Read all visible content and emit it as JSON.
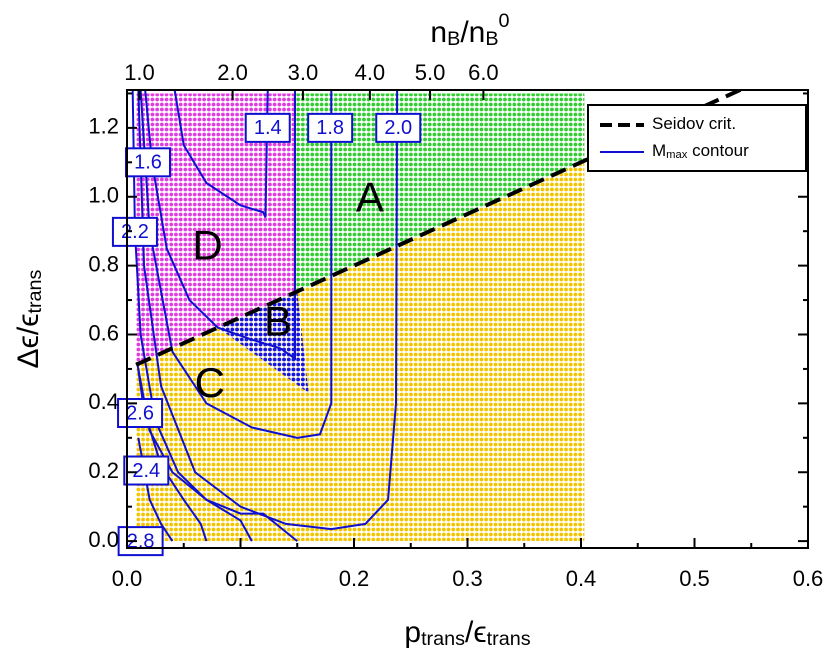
{
  "chart_data": {
    "type": "phase",
    "xlabel": [
      {
        "text": "p"
      },
      {
        "text": "trans",
        "sub": true
      },
      {
        "text": "/ϵ"
      },
      {
        "text": "trans",
        "sub": true
      }
    ],
    "ylabel": [
      {
        "text": "Δϵ/ϵ"
      },
      {
        "text": "trans",
        "sub": true
      }
    ],
    "x2label": [
      {
        "text": "n"
      },
      {
        "text": "B",
        "sub": true
      },
      {
        "text": "/n"
      },
      {
        "text": "B",
        "sub": true
      },
      {
        "text": "0",
        "sup": true
      }
    ],
    "xlim": [
      0,
      0.6
    ],
    "ylim": [
      -0.02,
      1.31
    ],
    "xticks": [
      {
        "value": 0,
        "label": "0.0"
      },
      0.1,
      0.2,
      0.3,
      0.4,
      0.5,
      0.6
    ],
    "xminor": [
      0.05,
      0.15,
      0.25,
      0.35,
      0.45,
      0.55
    ],
    "yticks": [
      {
        "value": 0,
        "label": "0.0"
      },
      0.2,
      0.4,
      0.6,
      0.8,
      {
        "value": 1,
        "label": "1.0"
      },
      1.2
    ],
    "yminor": [
      0.1,
      0.3,
      0.5,
      0.7,
      0.9,
      1.1,
      1.3
    ],
    "x2ticks": [
      {
        "value": 1,
        "label": "1.0",
        "at": 0.011
      },
      {
        "value": 2,
        "label": "2.0",
        "at": 0.093
      },
      {
        "value": 3,
        "label": "3.0",
        "at": 0.155
      },
      {
        "value": 4,
        "label": "4.0",
        "at": 0.214
      },
      {
        "value": 5,
        "label": "5.0",
        "at": 0.267
      },
      {
        "value": 6,
        "label": "6.0",
        "at": 0.314
      }
    ],
    "regions": [
      {
        "name": "C",
        "color": "#f2c400",
        "x": [
          0.008,
          0.403,
          0.403,
          0.008
        ],
        "y": [
          0,
          0,
          1.1045,
          0.512
        ],
        "label_x": 0.073,
        "label_y": 0.45
      },
      {
        "name": "A",
        "color": "#33cc33",
        "x": [
          0.148,
          0.403,
          0.403,
          0.148
        ],
        "y": [
          0.722,
          1.1045,
          1.3,
          1.3
        ],
        "label_x": 0.214,
        "label_y": 0.99
      },
      {
        "name": "D",
        "color": "#e03ce0",
        "x": [
          0.008,
          0.148,
          0.148,
          0.008
        ],
        "y": [
          0.512,
          0.722,
          1.3,
          1.3
        ],
        "label_x": 0.071,
        "label_y": 0.85
      },
      {
        "name": "B",
        "color": "#1414e6",
        "x": [
          0.08,
          0.15,
          0.16
        ],
        "y": [
          0.62,
          0.725,
          0.43
        ],
        "label_x": 0.133,
        "label_y": 0.63
      }
    ],
    "seidov": {
      "color": "#000000",
      "x": [
        0.008,
        0.6
      ],
      "y": [
        0.512,
        1.4
      ]
    },
    "contour_color": "#1010d0",
    "contours": [
      {
        "label": "1.4",
        "label_x": 0.124,
        "label_y": 1.2,
        "x": [
          0.042,
          0.05,
          0.07,
          0.1,
          0.12,
          0.122,
          0.124
        ],
        "y": [
          1.31,
          1.15,
          1.04,
          0.975,
          0.955,
          0.94,
          1.31
        ]
      },
      {
        "label": "1.6",
        "label_x": 0.0185,
        "label_y": 1.1,
        "x": [
          0.016,
          0.022,
          0.035,
          0.055,
          0.08,
          0.11,
          0.135,
          0.148,
          0.148
        ],
        "y": [
          1.31,
          1.1,
          0.85,
          0.7,
          0.62,
          0.585,
          0.56,
          0.53,
          1.31
        ]
      },
      {
        "label": "1.8",
        "label_x": 0.179,
        "label_y": 1.2,
        "x": [
          0.012,
          0.02,
          0.04,
          0.07,
          0.11,
          0.15,
          0.17,
          0.18,
          0.18
        ],
        "y": [
          1.31,
          0.9,
          0.55,
          0.4,
          0.33,
          0.3,
          0.31,
          0.4,
          1.31
        ]
      },
      {
        "label": "2.0",
        "label_x": 0.239,
        "label_y": 1.2,
        "x": [
          0.01,
          0.015,
          0.03,
          0.06,
          0.1,
          0.14,
          0.18,
          0.21,
          0.23,
          0.237,
          0.238
        ],
        "y": [
          1.31,
          0.8,
          0.45,
          0.2,
          0.1,
          0.05,
          0.035,
          0.05,
          0.12,
          0.4,
          1.31
        ]
      },
      {
        "label": "2.2",
        "label_x": 0.007,
        "label_y": 0.898,
        "x": [
          0.005,
          0.007,
          0.012,
          0.025,
          0.045,
          0.07,
          0.1,
          0.12,
          0.15
        ],
        "y": [
          1.31,
          0.9,
          0.6,
          0.35,
          0.2,
          0.12,
          0.08,
          0.08,
          0
        ]
      },
      {
        "label": "2.6",
        "label_x": 0.0115,
        "label_y": 0.372,
        "x": [
          0.009,
          0.015,
          0.03,
          0.05,
          0.065,
          0.07
        ],
        "y": [
          0.52,
          0.38,
          0.22,
          0.12,
          0.05,
          0
        ]
      },
      {
        "label": "2.4",
        "label_x": 0.017,
        "label_y": 0.205,
        "x": [
          0.01,
          0.02,
          0.04,
          0.07,
          0.1,
          0.11
        ],
        "y": [
          0.5,
          0.32,
          0.2,
          0.12,
          0.06,
          0
        ]
      },
      {
        "label": "2.8",
        "label_x": 0.012,
        "label_y": 0,
        "x": [
          0.01,
          0.02,
          0.03,
          0.04
        ],
        "y": [
          0.3,
          0.12,
          0.05,
          0
        ]
      }
    ],
    "legend": [
      {
        "parts": [
          {
            "text": "Seidov crit."
          }
        ],
        "style": "dashed"
      },
      {
        "parts": [
          {
            "text": "M"
          },
          {
            "text": "max",
            "sub": true
          },
          {
            "text": " contour"
          }
        ],
        "style": "contour"
      }
    ],
    "legend_position": "upper right"
  }
}
